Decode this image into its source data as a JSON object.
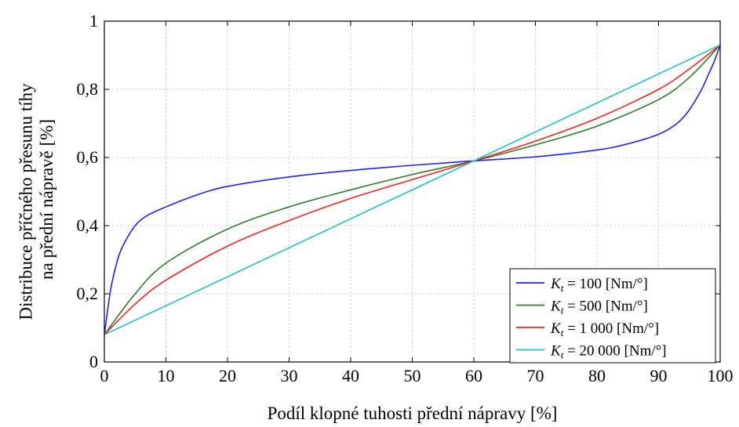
{
  "chart_data": {
    "type": "line",
    "xlabel": "Podíl klopné tuhosti přední nápravy [%]",
    "ylabel_lines": [
      "Distribuce příčného přesunu tíhy",
      "na přední nápravě [%]"
    ],
    "xlim": [
      0,
      100
    ],
    "ylim": [
      0,
      1
    ],
    "xticks": [
      "0",
      "10",
      "20",
      "30",
      "40",
      "50",
      "60",
      "70",
      "80",
      "90",
      "100"
    ],
    "yticks": [
      "0",
      "0,2",
      "0,4",
      "0,6",
      "0,8",
      "1"
    ],
    "grid": true,
    "legend_position": "bottom-right",
    "series": [
      {
        "name": "Kt = 100 [Nm/°]",
        "label_main": "K",
        "label_sub": "t",
        "label_rest": " = 100 [Nm/°]",
        "color": "#1f1fff",
        "x": [
          0,
          1,
          2,
          3,
          5,
          7,
          10,
          15,
          20,
          30,
          40,
          50,
          60,
          70,
          80,
          85,
          90,
          93,
          95,
          97,
          98,
          99,
          100
        ],
        "y": [
          0.08,
          0.21,
          0.29,
          0.34,
          0.4,
          0.43,
          0.455,
          0.49,
          0.515,
          0.543,
          0.562,
          0.577,
          0.59,
          0.602,
          0.622,
          0.64,
          0.668,
          0.7,
          0.74,
          0.8,
          0.84,
          0.88,
          0.93
        ]
      },
      {
        "name": "Kt = 500 [Nm/°]",
        "label_main": "K",
        "label_sub": "t",
        "label_rest": " = 500 [Nm/°]",
        "color": "#2e7d2e",
        "x": [
          0,
          5,
          10,
          20,
          30,
          40,
          50,
          60,
          70,
          80,
          90,
          95,
          100
        ],
        "y": [
          0.08,
          0.2,
          0.29,
          0.39,
          0.455,
          0.505,
          0.55,
          0.59,
          0.637,
          0.692,
          0.77,
          0.835,
          0.93
        ]
      },
      {
        "name": "Kt = 1 000 [Nm/°]",
        "label_main": "K",
        "label_sub": "t",
        "label_rest": " = 1 000 [Nm/°]",
        "color": "#ff2020",
        "x": [
          0,
          5,
          10,
          20,
          30,
          40,
          50,
          60,
          70,
          80,
          90,
          95,
          100
        ],
        "y": [
          0.08,
          0.17,
          0.24,
          0.34,
          0.415,
          0.48,
          0.535,
          0.59,
          0.648,
          0.715,
          0.8,
          0.86,
          0.93
        ]
      },
      {
        "name": "Kt = 20 000 [Nm/°]",
        "label_main": "K",
        "label_sub": "t",
        "label_rest": " = 20 000 [Nm/°]",
        "color": "#20c0c8",
        "x": [
          0,
          100
        ],
        "y": [
          0.08,
          0.93
        ]
      }
    ]
  }
}
